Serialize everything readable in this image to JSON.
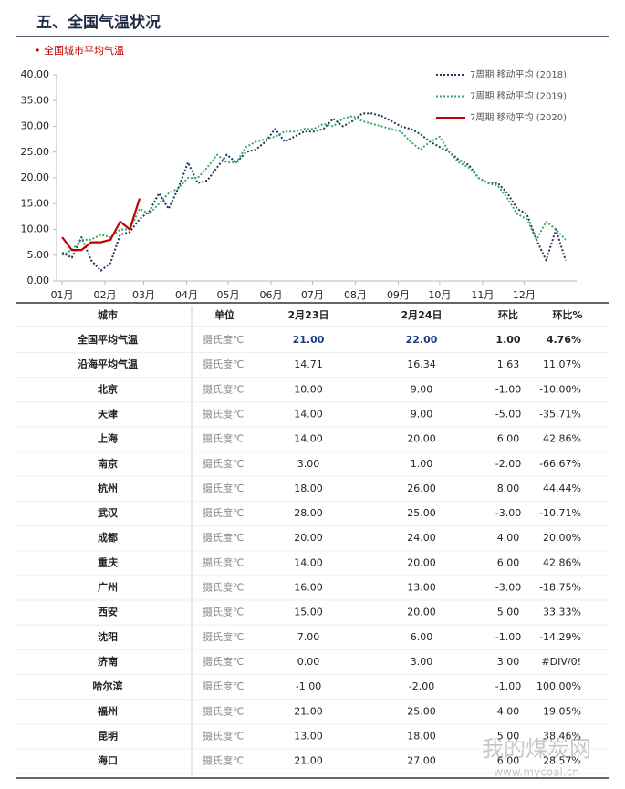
{
  "header": {
    "title": "五、全国气温状况"
  },
  "subtitle": "• 全国城市平均气温",
  "chart_data": {
    "type": "line",
    "x": [
      1,
      8,
      15,
      22,
      29,
      36,
      43,
      50,
      57,
      64,
      71,
      78,
      85,
      92,
      99,
      106,
      113,
      120,
      127,
      134,
      141,
      148,
      155,
      162,
      169,
      176,
      183,
      190,
      197,
      204,
      211,
      218,
      225,
      232,
      239,
      246,
      253,
      260,
      267,
      274,
      281,
      288,
      295,
      302,
      309,
      316,
      323,
      330,
      337,
      344,
      351,
      358,
      365
    ],
    "xlim": [
      -3,
      373
    ],
    "xticks": [
      {
        "value": 1,
        "label": "01月"
      },
      {
        "value": 32,
        "label": "02月"
      },
      {
        "value": 60,
        "label": "03月"
      },
      {
        "value": 91,
        "label": "04月"
      },
      {
        "value": 121,
        "label": "05月"
      },
      {
        "value": 152,
        "label": "06月"
      },
      {
        "value": 182,
        "label": "07月"
      },
      {
        "value": 213,
        "label": "08月"
      },
      {
        "value": 244,
        "label": "09月"
      },
      {
        "value": 274,
        "label": "10月"
      },
      {
        "value": 305,
        "label": "11月"
      },
      {
        "value": 335,
        "label": "12月"
      }
    ],
    "ylim": [
      0,
      40
    ],
    "yticks": [
      {
        "value": 0,
        "label": "0.00"
      },
      {
        "value": 5,
        "label": "5.00"
      },
      {
        "value": 10,
        "label": "10.00"
      },
      {
        "value": 15,
        "label": "15.00"
      },
      {
        "value": 20,
        "label": "20.00"
      },
      {
        "value": 25,
        "label": "25.00"
      },
      {
        "value": 30,
        "label": "30.00"
      },
      {
        "value": 35,
        "label": "35.00"
      },
      {
        "value": 40,
        "label": "40.00"
      }
    ],
    "legend": "top-right",
    "series": [
      {
        "name": "7周期 移动平均 (2018)",
        "color": "#1f3864",
        "style": "dotted",
        "values": [
          5.5,
          4.5,
          8.5,
          4,
          2,
          3.5,
          9,
          9.5,
          12,
          13.5,
          17,
          14,
          18,
          23,
          19,
          19.5,
          22,
          24.5,
          23,
          25,
          25.5,
          27,
          29.5,
          27,
          28,
          29,
          29,
          29.5,
          31.5,
          30,
          31,
          32.5,
          32.5,
          32,
          31,
          30,
          29.5,
          28.5,
          27,
          26,
          25,
          23.5,
          22.5,
          20,
          19,
          19,
          17,
          14,
          13,
          8,
          4,
          10,
          4
        ]
      },
      {
        "name": "7周期 移动平均 (2019)",
        "color": "#3aa86b",
        "style": "dotted",
        "values": [
          5,
          6,
          8,
          8,
          9,
          8.5,
          10,
          10,
          14,
          13,
          15,
          17,
          18,
          20,
          20,
          22,
          24.5,
          23,
          23,
          26,
          27,
          27.5,
          28,
          29,
          29,
          29.5,
          29.5,
          30.5,
          30,
          31.5,
          32,
          31,
          30.5,
          30,
          29.5,
          29,
          27,
          25.5,
          27,
          28,
          25,
          23,
          22,
          20,
          19,
          18.5,
          16,
          13,
          12,
          8,
          11.5,
          10,
          8
        ]
      },
      {
        "name": "7周期 移动平均 (2020)",
        "color": "#c00000",
        "style": "solid",
        "values": [
          8.5,
          6,
          6,
          7.5,
          7.5,
          8,
          11.5,
          10,
          16,
          null,
          null,
          null,
          null,
          null,
          null,
          null,
          null,
          null,
          null,
          null,
          null,
          null,
          null,
          null,
          null,
          null,
          null,
          null,
          null,
          null,
          null,
          null,
          null,
          null,
          null,
          null,
          null,
          null,
          null,
          null,
          null,
          null,
          null,
          null,
          null,
          null,
          null,
          null,
          null,
          null,
          null,
          null,
          null
        ]
      }
    ]
  },
  "table": {
    "columns": [
      "城市",
      "单位",
      "2月23日",
      "2月24日",
      "环比",
      "环比%"
    ],
    "rows": [
      [
        "全国平均气温",
        "摄氏度℃",
        "21.00",
        "22.00",
        "1.00",
        "4.76%"
      ],
      [
        "沿海平均气温",
        "摄氏度℃",
        "14.71",
        "16.34",
        "1.63",
        "11.07%"
      ],
      [
        "北京",
        "摄氏度℃",
        "10.00",
        "9.00",
        "-1.00",
        "-10.00%"
      ],
      [
        "天津",
        "摄氏度℃",
        "14.00",
        "9.00",
        "-5.00",
        "-35.71%"
      ],
      [
        "上海",
        "摄氏度℃",
        "14.00",
        "20.00",
        "6.00",
        "42.86%"
      ],
      [
        "南京",
        "摄氏度℃",
        "3.00",
        "1.00",
        "-2.00",
        "-66.67%"
      ],
      [
        "杭州",
        "摄氏度℃",
        "18.00",
        "26.00",
        "8.00",
        "44.44%"
      ],
      [
        "武汉",
        "摄氏度℃",
        "28.00",
        "25.00",
        "-3.00",
        "-10.71%"
      ],
      [
        "成都",
        "摄氏度℃",
        "20.00",
        "24.00",
        "4.00",
        "20.00%"
      ],
      [
        "重庆",
        "摄氏度℃",
        "14.00",
        "20.00",
        "6.00",
        "42.86%"
      ],
      [
        "广州",
        "摄氏度℃",
        "16.00",
        "13.00",
        "-3.00",
        "-18.75%"
      ],
      [
        "西安",
        "摄氏度℃",
        "15.00",
        "20.00",
        "5.00",
        "33.33%"
      ],
      [
        "沈阳",
        "摄氏度℃",
        "7.00",
        "6.00",
        "-1.00",
        "-14.29%"
      ],
      [
        "济南",
        "摄氏度℃",
        "0.00",
        "3.00",
        "3.00",
        "#DIV/0!"
      ],
      [
        "哈尔滨",
        "摄氏度℃",
        "-1.00",
        "-2.00",
        "-1.00",
        "100.00%"
      ],
      [
        "福州",
        "摄氏度℃",
        "21.00",
        "25.00",
        "4.00",
        "19.05%"
      ],
      [
        "昆明",
        "摄氏度℃",
        "13.00",
        "18.00",
        "5.00",
        "38.46%"
      ],
      [
        "海口",
        "摄氏度℃",
        "21.00",
        "27.00",
        "6.00",
        "28.57%"
      ]
    ]
  },
  "watermark": {
    "name": "我的煤炭网",
    "url": "www.mycoal.cn"
  }
}
